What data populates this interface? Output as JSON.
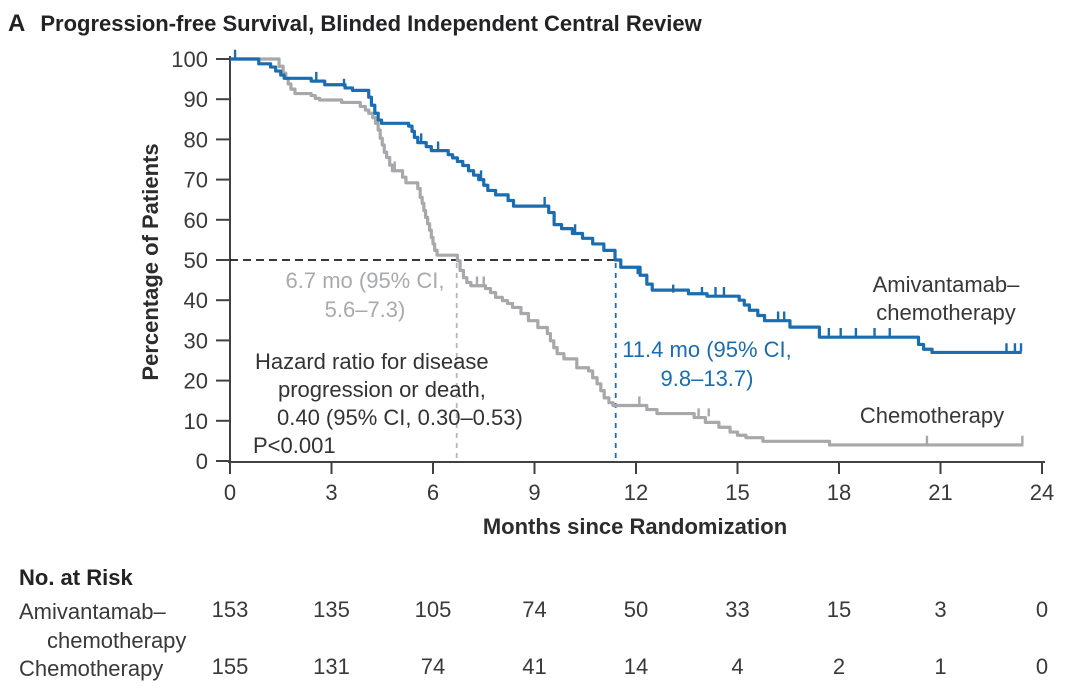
{
  "chart_data": {
    "type": "line",
    "subtype": "kaplan_meier_step",
    "panel_label": "A",
    "title": "Progression-free Survival, Blinded Independent Central Review",
    "xlabel": "Months since Randomization",
    "ylabel": "Percentage of Patients",
    "xlim": [
      0,
      24
    ],
    "ylim": [
      0,
      100
    ],
    "xticks": [
      0,
      3,
      6,
      9,
      12,
      15,
      18,
      21,
      24
    ],
    "yticks": [
      0,
      10,
      20,
      30,
      40,
      50,
      60,
      70,
      80,
      90,
      100
    ],
    "grid": false,
    "legend_position": "right-inline-labels",
    "colors": {
      "amivantamab": "#1a6db0",
      "chemotherapy": "#a6a8ab",
      "dashed_black": "#1c1c1e",
      "dashed_gray": "#b4b6b8"
    },
    "series": [
      {
        "name": "Amivantamab–chemotherapy",
        "label_lines": [
          "Amivantamab–",
          "chemotherapy"
        ],
        "color": "#1a6db0",
        "median_months": 11.4,
        "median_ci": "9.8–13.7",
        "points": [
          [
            0,
            100
          ],
          [
            0.85,
            98.8
          ],
          [
            1.2,
            98
          ],
          [
            1.35,
            97
          ],
          [
            1.5,
            96
          ],
          [
            1.6,
            95.2
          ],
          [
            2.4,
            94.5
          ],
          [
            2.8,
            93.6
          ],
          [
            3.4,
            92.8
          ],
          [
            3.62,
            92.2
          ],
          [
            4.1,
            90.5
          ],
          [
            4.18,
            88.5
          ],
          [
            4.28,
            86.5
          ],
          [
            4.38,
            84.8
          ],
          [
            4.48,
            84
          ],
          [
            5.28,
            83.3
          ],
          [
            5.38,
            82
          ],
          [
            5.45,
            80.5
          ],
          [
            5.55,
            79.2
          ],
          [
            5.8,
            78.2
          ],
          [
            5.95,
            77.2
          ],
          [
            6.45,
            76.2
          ],
          [
            6.58,
            75.4
          ],
          [
            6.72,
            74.5
          ],
          [
            6.88,
            73.5
          ],
          [
            7.05,
            72.2
          ],
          [
            7.2,
            71.1
          ],
          [
            7.35,
            70
          ],
          [
            7.5,
            68.6
          ],
          [
            7.62,
            67.3
          ],
          [
            7.85,
            66.2
          ],
          [
            8.22,
            64.8
          ],
          [
            8.38,
            63.4
          ],
          [
            9.42,
            61.8
          ],
          [
            9.58,
            58.8
          ],
          [
            9.8,
            57.8
          ],
          [
            10.12,
            56.6
          ],
          [
            10.42,
            55.4
          ],
          [
            10.72,
            54
          ],
          [
            11.05,
            52.4
          ],
          [
            11.38,
            50
          ],
          [
            11.55,
            48.2
          ],
          [
            12.12,
            46.2
          ],
          [
            12.32,
            44
          ],
          [
            12.48,
            42.5
          ],
          [
            13.55,
            41.6
          ],
          [
            14.1,
            41
          ],
          [
            15.05,
            40
          ],
          [
            15.2,
            38.8
          ],
          [
            15.35,
            37.5
          ],
          [
            15.6,
            36.2
          ],
          [
            15.8,
            34.9
          ],
          [
            16.55,
            33.3
          ],
          [
            17.42,
            30.8
          ],
          [
            20.35,
            29
          ],
          [
            20.5,
            27.8
          ],
          [
            20.75,
            27
          ],
          [
            23.4,
            27
          ]
        ],
        "censor_marks": [
          [
            0.15,
            100
          ],
          [
            2.55,
            94.5
          ],
          [
            3.37,
            92.8
          ],
          [
            5.65,
            79.2
          ],
          [
            6.15,
            77.2
          ],
          [
            7.42,
            70
          ],
          [
            9.3,
            63.4
          ],
          [
            10.2,
            56.6
          ],
          [
            12.05,
            46.2
          ],
          [
            13.1,
            41.6
          ],
          [
            13.95,
            41
          ],
          [
            14.35,
            41
          ],
          [
            14.6,
            41
          ],
          [
            16.2,
            34.9
          ],
          [
            16.38,
            34.9
          ],
          [
            17.7,
            30.8
          ],
          [
            18.05,
            30.8
          ],
          [
            18.5,
            30.8
          ],
          [
            19.05,
            30.8
          ],
          [
            19.5,
            30.8
          ],
          [
            22.95,
            27
          ],
          [
            23.2,
            27
          ],
          [
            23.38,
            27
          ]
        ]
      },
      {
        "name": "Chemotherapy",
        "label_lines": [
          "Chemotherapy"
        ],
        "color": "#a6a8ab",
        "median_months": 6.7,
        "median_ci": "5.6–7.3",
        "points": [
          [
            0,
            100
          ],
          [
            1.45,
            98.2
          ],
          [
            1.57,
            96.5
          ],
          [
            1.65,
            95.2
          ],
          [
            1.72,
            93.8
          ],
          [
            1.8,
            92.5
          ],
          [
            1.92,
            91.4
          ],
          [
            2.4,
            90.9
          ],
          [
            2.52,
            90.2
          ],
          [
            2.65,
            89.8
          ],
          [
            3.3,
            89.2
          ],
          [
            3.85,
            88.2
          ],
          [
            4.0,
            87.3
          ],
          [
            4.1,
            86.5
          ],
          [
            4.22,
            85.4
          ],
          [
            4.3,
            84
          ],
          [
            4.38,
            82.3
          ],
          [
            4.44,
            80.3
          ],
          [
            4.5,
            78.6
          ],
          [
            4.56,
            76.8
          ],
          [
            4.63,
            75.5
          ],
          [
            4.72,
            73.6
          ],
          [
            4.8,
            72.2
          ],
          [
            5.1,
            70.6
          ],
          [
            5.2,
            69.2
          ],
          [
            5.55,
            67.8
          ],
          [
            5.62,
            65.6
          ],
          [
            5.68,
            64.1
          ],
          [
            5.73,
            62.3
          ],
          [
            5.78,
            60.6
          ],
          [
            5.84,
            59
          ],
          [
            5.9,
            57.4
          ],
          [
            5.95,
            55.6
          ],
          [
            6.0,
            54
          ],
          [
            6.05,
            52.4
          ],
          [
            6.12,
            51.2
          ],
          [
            6.72,
            49.8
          ],
          [
            6.8,
            47.4
          ],
          [
            6.9,
            45.6
          ],
          [
            7.0,
            44.4
          ],
          [
            7.12,
            43.6
          ],
          [
            7.55,
            42.9
          ],
          [
            7.7,
            41.9
          ],
          [
            7.85,
            40.7
          ],
          [
            8.05,
            39.9
          ],
          [
            8.2,
            39.2
          ],
          [
            8.35,
            38.2
          ],
          [
            8.6,
            36.7
          ],
          [
            8.82,
            34.9
          ],
          [
            9.1,
            33.2
          ],
          [
            9.38,
            31.7
          ],
          [
            9.47,
            29.9
          ],
          [
            9.57,
            28.2
          ],
          [
            9.67,
            26.7
          ],
          [
            9.87,
            25.4
          ],
          [
            10.25,
            23.2
          ],
          [
            10.6,
            22.4
          ],
          [
            10.72,
            20.7
          ],
          [
            10.85,
            19.2
          ],
          [
            10.96,
            17.5
          ],
          [
            11.06,
            15.7
          ],
          [
            11.2,
            14.5
          ],
          [
            11.32,
            13.8
          ],
          [
            12.32,
            12.8
          ],
          [
            12.62,
            11.8
          ],
          [
            13.72,
            10.8
          ],
          [
            14.05,
            9.6
          ],
          [
            14.45,
            8.4
          ],
          [
            14.78,
            7.2
          ],
          [
            15.0,
            6.4
          ],
          [
            15.25,
            5.8
          ],
          [
            15.75,
            4.9
          ],
          [
            17.72,
            4.0
          ],
          [
            23.45,
            4.0
          ]
        ],
        "censor_marks": [
          [
            4.87,
            72.2
          ],
          [
            7.3,
            43.6
          ],
          [
            7.5,
            43.6
          ],
          [
            12.1,
            13.8
          ],
          [
            13.85,
            10.8
          ],
          [
            14.15,
            10.8
          ],
          [
            20.6,
            4.0
          ],
          [
            23.42,
            4.0
          ]
        ]
      }
    ],
    "reference_lines": {
      "horizontal_pct": 50,
      "vertical_months": [
        6.7,
        11.4
      ]
    },
    "annotations": {
      "median_chemotherapy": {
        "line1": "6.7 mo (95% CI,",
        "line2": "5.6–7.3)"
      },
      "median_amivantamab": {
        "line1": "11.4 mo (95% CI,",
        "line2": "9.8–13.7)"
      },
      "hazard_ratio": {
        "lines": [
          "Hazard ratio for disease",
          "progression or death,",
          "0.40 (95% CI, 0.30–0.53)",
          "P<0.001"
        ]
      }
    },
    "risk_table": {
      "title": "No. at Risk",
      "months": [
        0,
        3,
        6,
        9,
        12,
        15,
        18,
        21,
        24
      ],
      "rows": [
        {
          "label_lines": [
            "Amivantamab–",
            "chemotherapy"
          ],
          "values": [
            153,
            135,
            105,
            74,
            50,
            33,
            15,
            3,
            0
          ]
        },
        {
          "label_lines": [
            "Chemotherapy"
          ],
          "values": [
            155,
            131,
            74,
            41,
            14,
            4,
            2,
            1,
            0
          ]
        }
      ]
    }
  }
}
